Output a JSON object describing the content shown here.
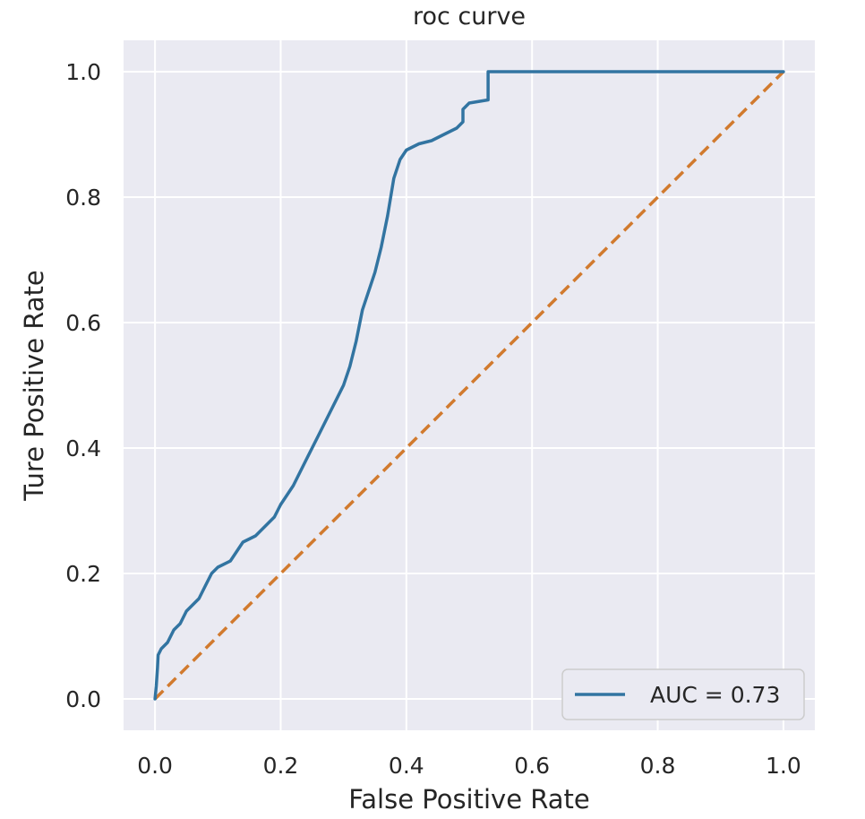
{
  "chart_data": {
    "type": "line",
    "title": "roc curve",
    "xlabel": "False Positive Rate",
    "ylabel": "Ture Positive Rate",
    "xlim": [
      -0.05,
      1.05
    ],
    "ylim": [
      -0.05,
      1.05
    ],
    "xticks": [
      "0.0",
      "0.2",
      "0.4",
      "0.6",
      "0.8",
      "1.0"
    ],
    "yticks": [
      "0.0",
      "0.2",
      "0.4",
      "0.6",
      "0.8",
      "1.0"
    ],
    "grid": true,
    "background": "#eaeaf2",
    "legend": {
      "placement": "lower-right",
      "entries": [
        "AUC = 0.73"
      ]
    },
    "series": [
      {
        "name": "AUC = 0.73",
        "color": "#3274a1",
        "style": "solid",
        "x": [
          0.0,
          0.002,
          0.004,
          0.005,
          0.01,
          0.02,
          0.03,
          0.04,
          0.05,
          0.06,
          0.07,
          0.08,
          0.09,
          0.1,
          0.12,
          0.14,
          0.16,
          0.18,
          0.19,
          0.2,
          0.22,
          0.24,
          0.26,
          0.28,
          0.3,
          0.31,
          0.32,
          0.33,
          0.34,
          0.35,
          0.36,
          0.37,
          0.38,
          0.39,
          0.4,
          0.41,
          0.42,
          0.44,
          0.46,
          0.48,
          0.49,
          0.49,
          0.5,
          0.53,
          0.53,
          0.6,
          0.7,
          0.8,
          0.9,
          1.0
        ],
        "y": [
          0.0,
          0.02,
          0.05,
          0.07,
          0.08,
          0.09,
          0.11,
          0.12,
          0.14,
          0.15,
          0.16,
          0.18,
          0.2,
          0.21,
          0.22,
          0.25,
          0.26,
          0.28,
          0.29,
          0.31,
          0.34,
          0.38,
          0.42,
          0.46,
          0.5,
          0.53,
          0.57,
          0.62,
          0.65,
          0.68,
          0.72,
          0.77,
          0.83,
          0.86,
          0.875,
          0.88,
          0.885,
          0.89,
          0.9,
          0.91,
          0.92,
          0.94,
          0.95,
          0.955,
          1.0,
          1.0,
          1.0,
          1.0,
          1.0,
          1.0
        ]
      },
      {
        "color": "#d17a2e",
        "style": "dashed",
        "x": [
          0.0,
          1.0
        ],
        "y": [
          0.0,
          1.0
        ]
      }
    ]
  }
}
